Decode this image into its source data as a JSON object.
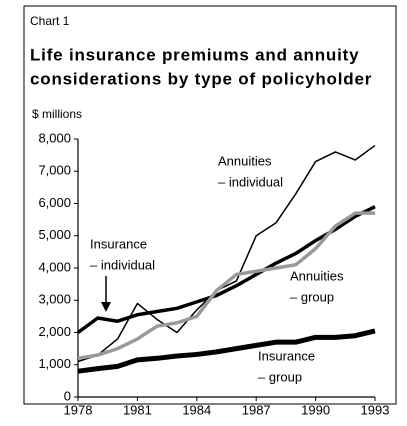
{
  "chart_data": {
    "type": "line",
    "chart_label": "Chart 1",
    "title": [
      "Life insurance premiums and annuity",
      "considerations by type of policyholder"
    ],
    "y_axis_label": "$ millions",
    "x": [
      1978,
      1979,
      1980,
      1981,
      1982,
      1983,
      1984,
      1985,
      1986,
      1987,
      1988,
      1989,
      1990,
      1991,
      1992,
      1993
    ],
    "xlim": [
      1978,
      1993
    ],
    "xticks": [
      1978,
      1981,
      1984,
      1987,
      1990,
      1993
    ],
    "ylim": [
      0,
      8000
    ],
    "yticks": [
      0,
      {
        "value": 1000,
        "label": "1,000"
      },
      {
        "value": 2000,
        "label": "2,000"
      },
      {
        "value": 3000,
        "label": "3,000"
      },
      {
        "value": 4000,
        "label": "4,000"
      },
      {
        "value": 5000,
        "label": "5,000"
      },
      {
        "value": 6000,
        "label": "6,000"
      },
      {
        "value": 7000,
        "label": "7,000"
      },
      {
        "value": 8000,
        "label": "8,000"
      }
    ],
    "series": [
      {
        "label": [
          "Annuities",
          "– individual"
        ],
        "color": "#000000",
        "width": 1.5,
        "values": [
          1100,
          1300,
          1800,
          2900,
          2400,
          2000,
          2700,
          3300,
          3600,
          5000,
          5400,
          6300,
          7300,
          7600,
          7350,
          7800
        ]
      },
      {
        "label": [
          "Insurance",
          "– individual"
        ],
        "color": "#000000",
        "width": 3.5,
        "values": [
          2000,
          2450,
          2350,
          2550,
          2650,
          2750,
          2950,
          3150,
          3450,
          3800,
          4150,
          4450,
          4850,
          5200,
          5600,
          5900
        ]
      },
      {
        "label": [
          "Annuities",
          "– group"
        ],
        "color": "#999999",
        "width": 3.5,
        "values": [
          1200,
          1300,
          1500,
          1800,
          2200,
          2300,
          2500,
          3300,
          3800,
          3900,
          4000,
          4100,
          4600,
          5300,
          5700,
          5700
        ]
      },
      {
        "label": [
          "Insurance",
          "– group"
        ],
        "color": "#000000",
        "width": 5,
        "values": [
          800,
          880,
          950,
          1150,
          1200,
          1270,
          1320,
          1400,
          1500,
          1600,
          1700,
          1700,
          1850,
          1850,
          1900,
          2050
        ]
      }
    ]
  }
}
